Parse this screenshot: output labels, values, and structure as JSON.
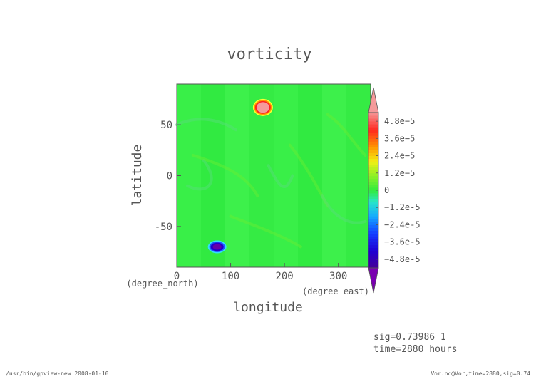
{
  "chart_data": {
    "type": "heatmap",
    "title": "vorticity",
    "xlabel": "longitude",
    "ylabel": "latitude",
    "x_unit": "(degree_east)",
    "y_unit": "(degree_north)",
    "xlim": [
      0,
      360
    ],
    "ylim": [
      -90,
      90
    ],
    "x_ticks": [
      "0",
      "100",
      "200",
      "300"
    ],
    "y_ticks": [
      "50",
      "0",
      "-50"
    ],
    "colorbar": {
      "ticks": [
        "4.8e-5",
        "3.6e-5",
        "2.4e-5",
        "1.2e-5",
        "0",
        "-1.2e-5",
        "-2.4e-5",
        "-3.6e-5",
        "-4.8e-5"
      ],
      "range": [
        -5.4e-05,
        5.4e-05
      ]
    },
    "background_value": 0,
    "features": [
      {
        "label": "positive vortex",
        "lon": 160,
        "lat": 67,
        "value": 6e-05
      },
      {
        "label": "negative vortex",
        "lon": 75,
        "lat": -70,
        "value": -6e-05
      }
    ],
    "annotations": [
      "sig=0.73986 1",
      "time=2880 hours"
    ]
  },
  "footer": {
    "left": "/usr/bin/gpview-new  2008-01-10",
    "right": "Vor.nc@Vor,time=2880,sig=0.74"
  }
}
